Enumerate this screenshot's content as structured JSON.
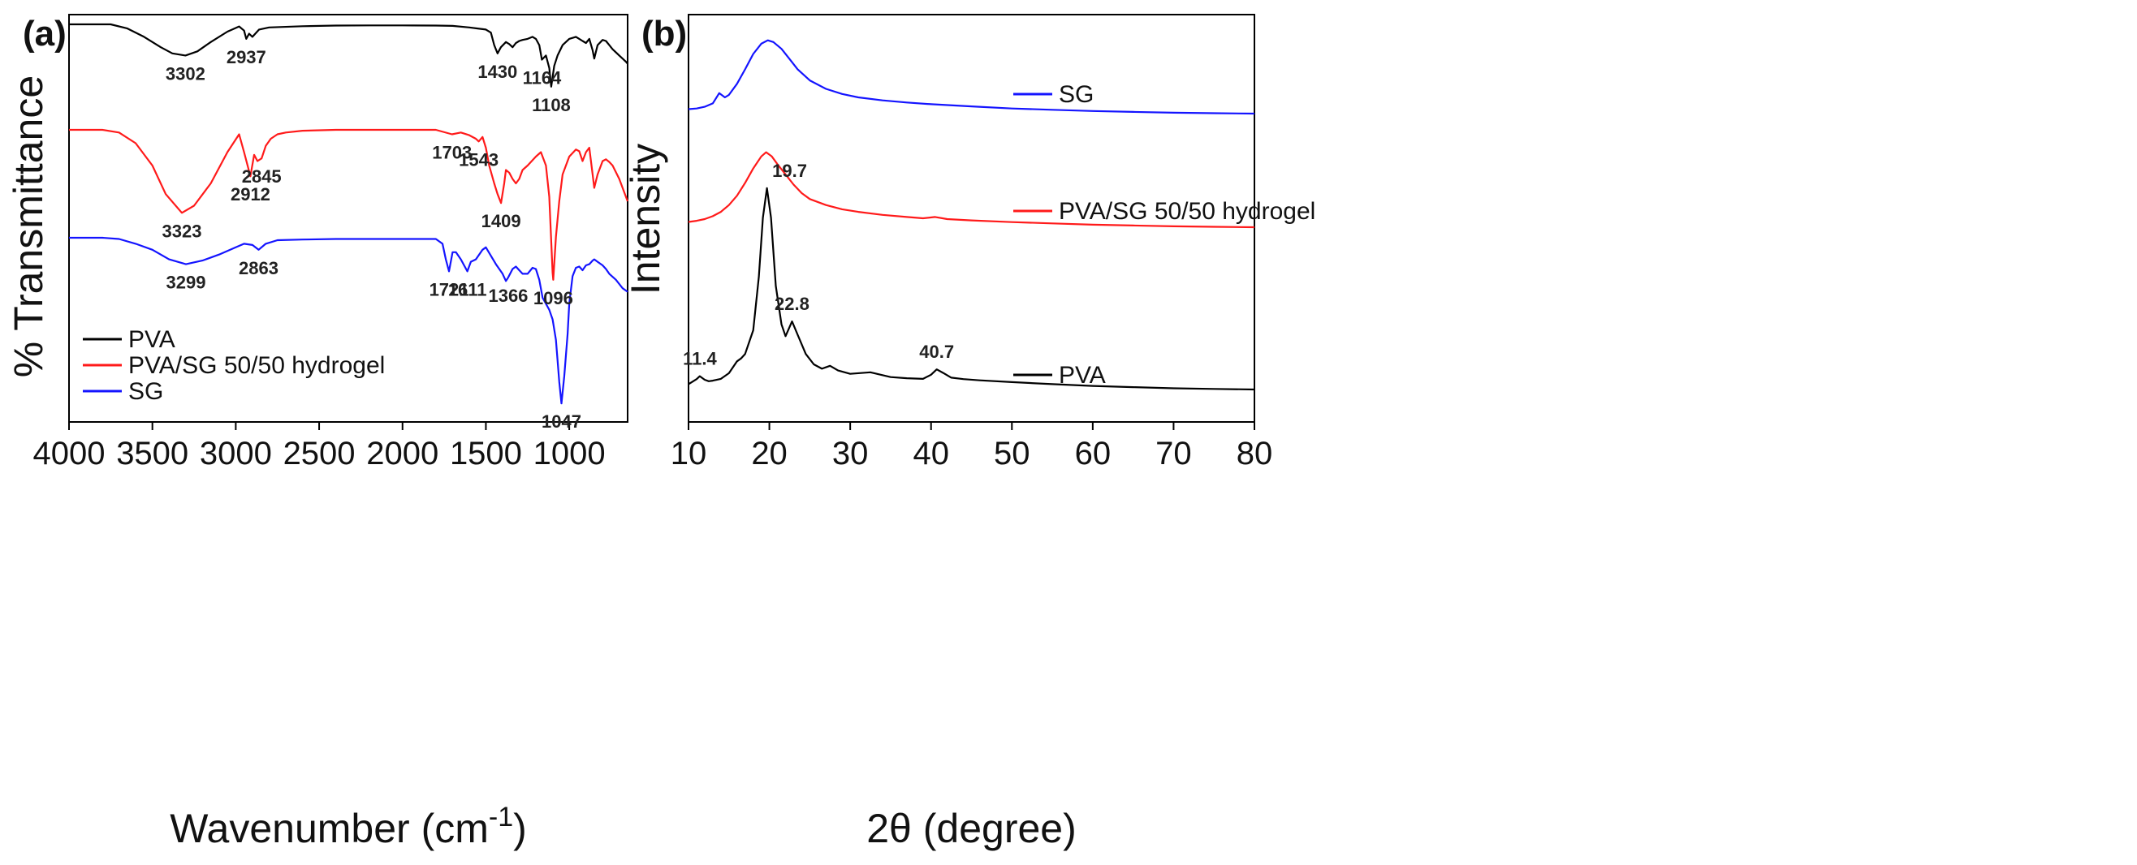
{
  "chart_data": [
    {
      "type": "line",
      "panel_label": "(a)",
      "title": "",
      "xlabel": "Wavenumber (cm",
      "xlabel_superscript": "-1",
      "xlabel_close": ")",
      "ylabel": "% Transmittance",
      "xlim": [
        4000,
        650
      ],
      "x_ticks": [
        "4000",
        "3500",
        "3000",
        "2500",
        "2000",
        "1500",
        "1000"
      ],
      "legend": {
        "placement": "bottom-left",
        "entries": [
          "PVA",
          "PVA/SG 50/50 hydrogel",
          "SG"
        ]
      },
      "series": [
        {
          "name": "PVA",
          "color": "#000000",
          "x": [
            4000,
            3750,
            3650,
            3550,
            3450,
            3380,
            3302,
            3230,
            3150,
            3050,
            2980,
            2950,
            2937,
            2920,
            2900,
            2860,
            2800,
            2600,
            2400,
            2200,
            2000,
            1800,
            1700,
            1600,
            1550,
            1500,
            1470,
            1450,
            1430,
            1410,
            1380,
            1360,
            1340,
            1320,
            1300,
            1280,
            1250,
            1220,
            1200,
            1180,
            1164,
            1140,
            1120,
            1108,
            1090,
            1070,
            1040,
            1000,
            960,
            940,
            920,
            900,
            880,
            860,
            850,
            830,
            800,
            780,
            760,
            740,
            700,
            660,
            650
          ],
          "values": [
            0.0,
            0.0,
            0.04,
            0.12,
            0.22,
            0.28,
            0.3,
            0.26,
            0.17,
            0.07,
            0.02,
            0.06,
            0.14,
            0.09,
            0.12,
            0.05,
            0.03,
            0.018,
            0.012,
            0.01,
            0.01,
            0.012,
            0.015,
            0.03,
            0.04,
            0.05,
            0.08,
            0.2,
            0.28,
            0.22,
            0.17,
            0.19,
            0.22,
            0.18,
            0.16,
            0.15,
            0.14,
            0.12,
            0.14,
            0.2,
            0.34,
            0.3,
            0.42,
            0.6,
            0.4,
            0.3,
            0.2,
            0.14,
            0.12,
            0.14,
            0.16,
            0.18,
            0.14,
            0.25,
            0.33,
            0.2,
            0.15,
            0.16,
            0.2,
            0.24,
            0.3,
            0.36,
            0.38
          ]
        },
        {
          "name": "PVA/SG 50/50 hydrogel",
          "color": "#ff1a1a",
          "x": [
            4000,
            3800,
            3700,
            3600,
            3500,
            3420,
            3323,
            3250,
            3150,
            3050,
            2980,
            2950,
            2912,
            2890,
            2870,
            2845,
            2820,
            2790,
            2750,
            2700,
            2600,
            2400,
            2200,
            2000,
            1800,
            1703,
            1650,
            1600,
            1560,
            1543,
            1520,
            1500,
            1480,
            1450,
            1430,
            1409,
            1390,
            1380,
            1360,
            1340,
            1320,
            1300,
            1280,
            1250,
            1200,
            1170,
            1140,
            1120,
            1100,
            1096,
            1080,
            1060,
            1040,
            1000,
            960,
            940,
            920,
            900,
            880,
            860,
            850,
            830,
            800,
            780,
            760,
            740,
            700,
            660,
            650
          ],
          "values": [
            0.0,
            0.0,
            0.03,
            0.15,
            0.4,
            0.72,
            0.93,
            0.85,
            0.6,
            0.25,
            0.05,
            0.25,
            0.52,
            0.28,
            0.35,
            0.32,
            0.18,
            0.1,
            0.05,
            0.03,
            0.01,
            0.0,
            0.0,
            0.0,
            0.0,
            0.05,
            0.03,
            0.06,
            0.1,
            0.13,
            0.08,
            0.2,
            0.4,
            0.6,
            0.72,
            0.82,
            0.6,
            0.45,
            0.48,
            0.55,
            0.6,
            0.55,
            0.45,
            0.4,
            0.3,
            0.25,
            0.4,
            0.75,
            1.6,
            1.68,
            1.2,
            0.8,
            0.5,
            0.3,
            0.22,
            0.24,
            0.35,
            0.25,
            0.2,
            0.5,
            0.65,
            0.5,
            0.35,
            0.33,
            0.36,
            0.4,
            0.55,
            0.75,
            0.8
          ]
        },
        {
          "name": "SG",
          "color": "#1414ff",
          "x": [
            4000,
            3800,
            3700,
            3600,
            3500,
            3400,
            3299,
            3200,
            3100,
            3000,
            2950,
            2900,
            2863,
            2820,
            2750,
            2600,
            2400,
            2200,
            2000,
            1800,
            1760,
            1740,
            1721,
            1700,
            1680,
            1650,
            1611,
            1590,
            1560,
            1520,
            1500,
            1470,
            1440,
            1400,
            1380,
            1366,
            1340,
            1320,
            1300,
            1280,
            1250,
            1220,
            1200,
            1180,
            1160,
            1140,
            1120,
            1100,
            1080,
            1060,
            1047,
            1030,
            1010,
            1000,
            980,
            960,
            940,
            920,
            900,
            880,
            860,
            850,
            830,
            800,
            780,
            760,
            720,
            680,
            650
          ],
          "values": [
            0.0,
            0.0,
            0.01,
            0.05,
            0.1,
            0.18,
            0.22,
            0.19,
            0.14,
            0.08,
            0.05,
            0.06,
            0.1,
            0.05,
            0.02,
            0.015,
            0.01,
            0.01,
            0.01,
            0.01,
            0.05,
            0.18,
            0.28,
            0.12,
            0.12,
            0.18,
            0.28,
            0.2,
            0.18,
            0.1,
            0.08,
            0.15,
            0.22,
            0.3,
            0.36,
            0.33,
            0.26,
            0.24,
            0.27,
            0.3,
            0.3,
            0.25,
            0.26,
            0.35,
            0.5,
            0.55,
            0.6,
            0.68,
            0.85,
            1.2,
            1.38,
            1.15,
            0.8,
            0.55,
            0.32,
            0.25,
            0.24,
            0.27,
            0.23,
            0.22,
            0.19,
            0.18,
            0.2,
            0.23,
            0.26,
            0.3,
            0.35,
            0.42,
            0.45
          ]
        }
      ],
      "annotations": [
        {
          "label": "3302",
          "x": 3302,
          "series": "PVA"
        },
        {
          "label": "2937",
          "x": 2937,
          "series": "PVA"
        },
        {
          "label": "1430",
          "x": 1430,
          "series": "PVA"
        },
        {
          "label": "1164",
          "x": 1164,
          "series": "PVA"
        },
        {
          "label": "1108",
          "x": 1108,
          "series": "PVA"
        },
        {
          "label": "1703",
          "x": 1703,
          "series": "PVA/SG 50/50 hydrogel"
        },
        {
          "label": "1543",
          "x": 1543,
          "series": "PVA/SG 50/50 hydrogel"
        },
        {
          "label": "2845",
          "x": 2845,
          "series": "PVA/SG 50/50 hydrogel"
        },
        {
          "label": "3323",
          "x": 3323,
          "series": "PVA/SG 50/50 hydrogel"
        },
        {
          "label": "2912",
          "x": 2912,
          "series": "PVA/SG 50/50 hydrogel"
        },
        {
          "label": "1409",
          "x": 1409,
          "series": "PVA/SG 50/50 hydrogel"
        },
        {
          "label": "1096",
          "x": 1096,
          "series": "PVA/SG 50/50 hydrogel"
        },
        {
          "label": "3299",
          "x": 3299,
          "series": "SG"
        },
        {
          "label": "2863",
          "x": 2863,
          "series": "SG"
        },
        {
          "label": "1721",
          "x": 1721,
          "series": "SG"
        },
        {
          "label": "1611",
          "x": 1611,
          "series": "SG"
        },
        {
          "label": "1366",
          "x": 1366,
          "series": "SG"
        },
        {
          "label": "1047",
          "x": 1047,
          "series": "SG"
        }
      ]
    },
    {
      "type": "line",
      "panel_label": "(b)",
      "title": "",
      "xlabel": "2θ (degree)",
      "ylabel": "Intensity",
      "xlim": [
        10,
        80
      ],
      "x_ticks": [
        "10",
        "20",
        "30",
        "40",
        "50",
        "60",
        "70",
        "80"
      ],
      "legend": {
        "placement": "inline-right",
        "entries": [
          "SG",
          "PVA/SG 50/50 hydrogel",
          "PVA"
        ]
      },
      "series": [
        {
          "name": "SG",
          "color": "#1414ff",
          "x": [
            10,
            11,
            12,
            13,
            13.8,
            14.5,
            15,
            16,
            17,
            18,
            19,
            19.8,
            20.5,
            21.5,
            22.5,
            23.5,
            25,
            27,
            29,
            31,
            34,
            37,
            40,
            45,
            50,
            55,
            60,
            65,
            70,
            75,
            80
          ],
          "values": [
            0.52,
            0.6,
            0.8,
            1.2,
            2.4,
            1.9,
            2.2,
            3.5,
            5.2,
            7.0,
            8.2,
            8.6,
            8.4,
            7.6,
            6.4,
            5.2,
            3.9,
            2.9,
            2.3,
            1.9,
            1.55,
            1.3,
            1.1,
            0.85,
            0.6,
            0.45,
            0.3,
            0.2,
            0.1,
            0.05,
            0.0
          ]
        },
        {
          "name": "PVA/SG 50/50 hydrogel",
          "color": "#ff1a1a",
          "x": [
            10,
            11,
            12,
            13,
            14,
            15,
            16,
            17,
            18,
            19,
            19.6,
            20.3,
            21,
            22,
            23,
            24,
            25,
            27,
            29,
            31,
            34,
            37,
            39,
            40.5,
            42,
            45,
            50,
            55,
            60,
            65,
            70,
            75,
            80
          ],
          "values": [
            0.62,
            0.75,
            0.95,
            1.3,
            1.8,
            2.6,
            3.7,
            5.2,
            6.9,
            8.3,
            8.8,
            8.3,
            7.4,
            6.2,
            5.0,
            4.0,
            3.3,
            2.6,
            2.1,
            1.8,
            1.45,
            1.2,
            1.05,
            1.2,
            0.95,
            0.8,
            0.6,
            0.45,
            0.3,
            0.2,
            0.1,
            0.05,
            0.0
          ]
        },
        {
          "name": "PVA",
          "color": "#000000",
          "x": [
            10,
            11,
            11.4,
            12,
            12.5,
            13,
            14,
            15,
            16,
            16.5,
            17,
            18,
            18.7,
            19.2,
            19.7,
            20.2,
            20.8,
            21.5,
            22,
            22.8,
            23.5,
            24.5,
            25.5,
            26.5,
            27.5,
            28.5,
            30,
            32.5,
            35,
            37,
            39,
            40,
            40.7,
            41.5,
            42.5,
            44,
            46,
            50,
            55,
            60,
            65,
            70,
            75,
            80
          ],
          "values": [
            1.8,
            3.5,
            4.5,
            3.3,
            2.8,
            3.0,
            3.6,
            5.5,
            9.5,
            10.5,
            12.0,
            20.0,
            38.0,
            58.0,
            68.0,
            58.0,
            35.0,
            22.0,
            18.0,
            23.0,
            18.5,
            12.0,
            8.5,
            7.0,
            8.0,
            6.4,
            5.3,
            5.8,
            4.2,
            3.8,
            3.6,
            5.0,
            6.8,
            5.6,
            4.0,
            3.5,
            3.1,
            2.5,
            1.8,
            1.2,
            0.8,
            0.4,
            0.2,
            0.0
          ]
        }
      ],
      "annotations": [
        {
          "label": "11.4",
          "x": 11.4,
          "series": "PVA"
        },
        {
          "label": "19.7",
          "x": 19.7,
          "series": "PVA"
        },
        {
          "label": "22.8",
          "x": 22.8,
          "series": "PVA"
        },
        {
          "label": "40.7",
          "x": 40.7,
          "series": "PVA"
        }
      ]
    }
  ]
}
